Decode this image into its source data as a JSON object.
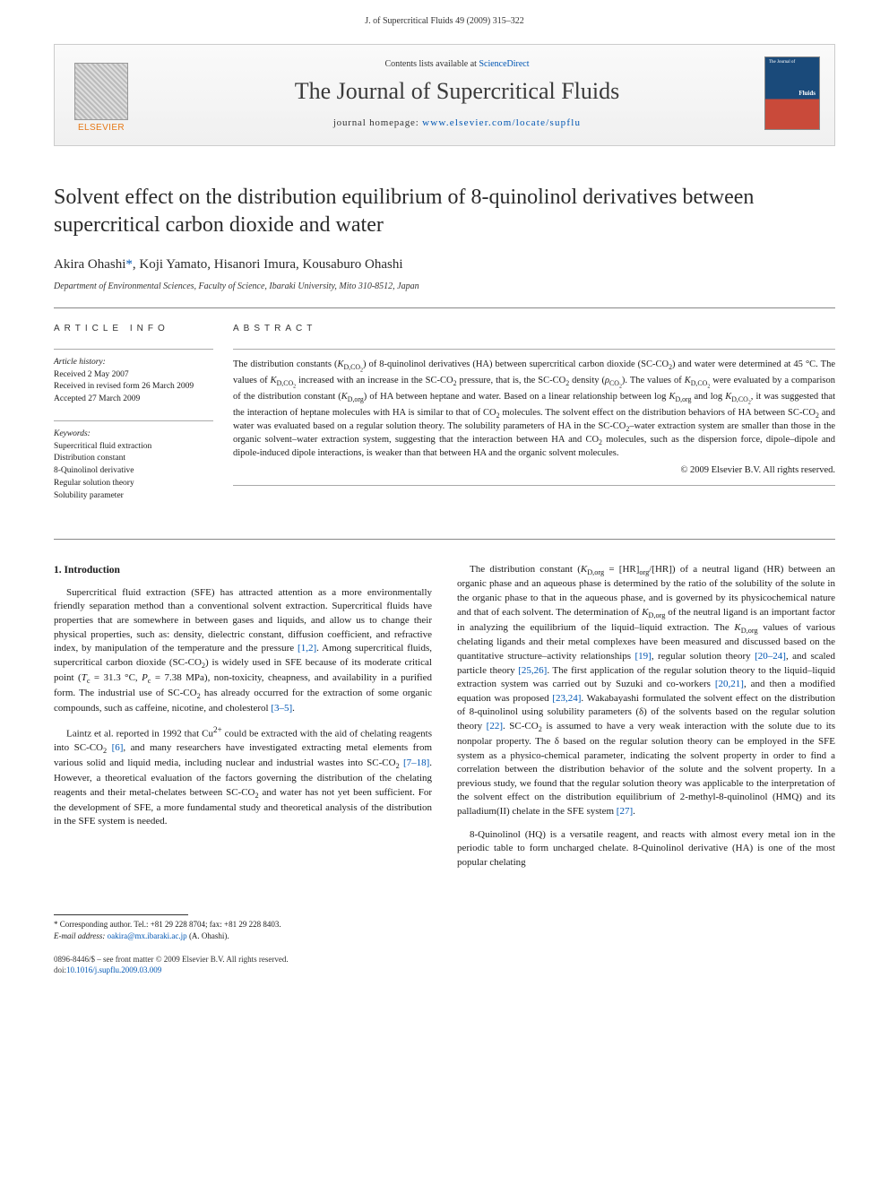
{
  "header": {
    "running_head": "J. of Supercritical Fluids 49 (2009) 315–322"
  },
  "banner": {
    "contents_prefix": "Contents lists available at ",
    "contents_link": "ScienceDirect",
    "journal_name": "The Journal of Supercritical Fluids",
    "homepage_prefix": "journal homepage: ",
    "homepage_url": "www.elsevier.com/locate/supflu",
    "publisher_logo_text": "ELSEVIER",
    "cover_small1": "The Journal of",
    "cover_small2": "Fluids"
  },
  "title": "Solvent effect on the distribution equilibrium of 8-quinolinol derivatives between supercritical carbon dioxide and water",
  "authors_html": "Akira Ohashi*, Koji Yamato, Hisanori Imura, Kousaburo Ohashi",
  "authors": {
    "a1": "Akira Ohashi",
    "star": "*",
    "a2": ", Koji Yamato, Hisanori Imura, Kousaburo Ohashi"
  },
  "affiliation": "Department of Environmental Sciences, Faculty of Science, Ibaraki University, Mito 310-8512, Japan",
  "info": {
    "heading": "ARTICLE INFO",
    "history_head": "Article history:",
    "received": "Received 2 May 2007",
    "revised": "Received in revised form 26 March 2009",
    "accepted": "Accepted 27 March 2009",
    "keywords_head": "Keywords:",
    "kw1": "Supercritical fluid extraction",
    "kw2": "Distribution constant",
    "kw3": "8-Quinolinol derivative",
    "kw4": "Regular solution theory",
    "kw5": "Solubility parameter"
  },
  "abstract": {
    "heading": "ABSTRACT",
    "text": "The distribution constants (K_D,CO₂) of 8-quinolinol derivatives (HA) between supercritical carbon dioxide (SC-CO₂) and water were determined at 45 °C. The values of K_D,CO₂ increased with an increase in the SC-CO₂ pressure, that is, the SC-CO₂ density (ρ_CO₂). The values of K_D,CO₂ were evaluated by a comparison of the distribution constant (K_D,org) of HA between heptane and water. Based on a linear relationship between log K_D,org and log K_D,CO₂, it was suggested that the interaction of heptane molecules with HA is similar to that of CO₂ molecules. The solvent effect on the distribution behaviors of HA between SC-CO₂ and water was evaluated based on a regular solution theory. The solubility parameters of HA in the SC-CO₂–water extraction system are smaller than those in the organic solvent–water extraction system, suggesting that the interaction between HA and CO₂ molecules, such as the dispersion force, dipole–dipole and dipole-induced dipole interactions, is weaker than that between HA and the organic solvent molecules.",
    "copyright": "© 2009 Elsevier B.V. All rights reserved."
  },
  "body": {
    "section_head": "1.  Introduction",
    "left_p1": "Supercritical fluid extraction (SFE) has attracted attention as a more environmentally friendly separation method than a conventional solvent extraction. Supercritical fluids have properties that are somewhere in between gases and liquids, and allow us to change their physical properties, such as: density, dielectric constant, diffusion coefficient, and refractive index, by manipulation of the temperature and the pressure [1,2]. Among supercritical fluids, supercritical carbon dioxide (SC-CO₂) is widely used in SFE because of its moderate critical point (T_c = 31.3 °C, P_c = 7.38 MPa), non-toxicity, cheapness, and availability in a purified form. The industrial use of SC-CO₂ has already occurred for the extraction of some organic compounds, such as caffeine, nicotine, and cholesterol [3–5].",
    "left_p2": "Laintz et al. reported in 1992 that Cu²⁺ could be extracted with the aid of chelating reagents into SC-CO₂ [6], and many researchers have investigated extracting metal elements from various solid and liquid media, including nuclear and industrial wastes into SC-CO₂ [7–18]. However, a theoretical evaluation of the factors governing the distribution of the chelating reagents and their metal-chelates between SC-CO₂ and water has not yet been sufficient. For the development of SFE, a more fundamental study and theoretical analysis of the distribution in the SFE system is needed.",
    "right_p1": "The distribution constant (K_D,org = [HR]_org/[HR]) of a neutral ligand (HR) between an organic phase and an aqueous phase is determined by the ratio of the solubility of the solute in the organic phase to that in the aqueous phase, and is governed by its physicochemical nature and that of each solvent. The determination of K_D,org of the neutral ligand is an important factor in analyzing the equilibrium of the liquid–liquid extraction. The K_D,org values of various chelating ligands and their metal complexes have been measured and discussed based on the quantitative structure–activity relationships [19], regular solution theory [20–24], and scaled particle theory [25,26]. The first application of the regular solution theory to the liquid–liquid extraction system was carried out by Suzuki and co-workers [20,21], and then a modified equation was proposed [23,24]. Wakabayashi formulated the solvent effect on the distribution of 8-quinolinol using solubility parameters (δ) of the solvents based on the regular solution theory [22]. SC-CO₂ is assumed to have a very weak interaction with the solute due to its nonpolar property. The δ based on the regular solution theory can be employed in the SFE system as a physico-chemical parameter, indicating the solvent property in order to find a correlation between the distribution behavior of the solute and the solvent property. In a previous study, we found that the regular solution theory was applicable to the interpretation of the solvent effect on the distribution equilibrium of 2-methyl-8-quinolinol (HMQ) and its palladium(II) chelate in the SFE system [27].",
    "right_p2": "8-Quinolinol (HQ) is a versatile reagent, and reacts with almost every metal ion in the periodic table to form uncharged chelate. 8-Quinolinol derivative (HA) is one of the most popular chelating"
  },
  "footnote": {
    "corr": "* Corresponding author. Tel.: +81 29 228 8704; fax: +81 29 228 8403.",
    "email_label": "E-mail address: ",
    "email": "oakira@mx.ibaraki.ac.jp",
    "email_suffix": " (A. Ohashi)."
  },
  "footer": {
    "line1": "0896-8446/$ – see front matter © 2009 Elsevier B.V. All rights reserved.",
    "doi_label": "doi:",
    "doi": "10.1016/j.supflu.2009.03.009"
  },
  "colors": {
    "link": "#0056b3",
    "elsevier_orange": "#e67817"
  }
}
